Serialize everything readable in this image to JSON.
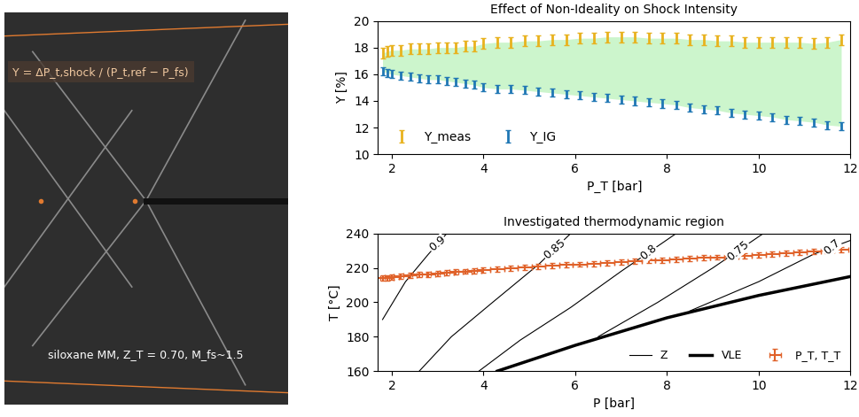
{
  "chart_data": [
    {
      "type": "image",
      "annotations": [
        "Y = ΔP_t,shock / (P_t,ref − P_fs)",
        "siloxane MM, Z_T = 0.70, M_fs~1.5"
      ]
    },
    {
      "type": "errorbar",
      "title": "Effect of Non-Ideality on Shock Intensity",
      "x_label": "P_T [bar]",
      "y_label": "Y [%]",
      "xlim": [
        1.7,
        12
      ],
      "xticks": [
        2,
        4,
        6,
        8,
        10,
        12
      ],
      "ylim": [
        10,
        20
      ],
      "yticks": [
        10,
        12,
        14,
        16,
        18,
        20
      ],
      "legend": "lower left",
      "x": [
        1.8,
        1.9,
        2.0,
        2.2,
        2.4,
        2.6,
        2.8,
        3.0,
        3.2,
        3.4,
        3.6,
        3.8,
        4.0,
        4.3,
        4.6,
        4.9,
        5.2,
        5.5,
        5.8,
        6.1,
        6.4,
        6.7,
        7.0,
        7.3,
        7.6,
        7.9,
        8.2,
        8.5,
        8.8,
        9.1,
        9.4,
        9.7,
        10.0,
        10.3,
        10.6,
        10.9,
        11.2,
        11.5,
        11.8
      ],
      "series": [
        {
          "name": "Y_meas",
          "color": "#e8b21e",
          "error": 0.4,
          "values": [
            17.6,
            17.7,
            17.8,
            17.8,
            17.9,
            17.9,
            17.9,
            18.0,
            18.0,
            18.0,
            18.1,
            18.1,
            18.3,
            18.4,
            18.4,
            18.5,
            18.5,
            18.6,
            18.6,
            18.7,
            18.7,
            18.8,
            18.8,
            18.8,
            18.7,
            18.7,
            18.7,
            18.6,
            18.6,
            18.5,
            18.5,
            18.4,
            18.4,
            18.4,
            18.4,
            18.4,
            18.3,
            18.4,
            18.6
          ]
        },
        {
          "name": "Y_IG",
          "color": "#1f77b4",
          "error": 0.3,
          "values": [
            16.2,
            16.1,
            16.0,
            15.9,
            15.8,
            15.7,
            15.6,
            15.6,
            15.5,
            15.4,
            15.3,
            15.2,
            15.0,
            14.9,
            14.9,
            14.8,
            14.7,
            14.6,
            14.5,
            14.4,
            14.3,
            14.2,
            14.1,
            14.0,
            13.9,
            13.8,
            13.7,
            13.5,
            13.4,
            13.3,
            13.1,
            13.0,
            12.9,
            12.8,
            12.6,
            12.5,
            12.4,
            12.2,
            12.1
          ]
        }
      ]
    },
    {
      "type": "line",
      "title": "Investigated thermodynamic region",
      "x_label": "P [bar]",
      "y_label": "T [°C]",
      "xlim": [
        1.7,
        12
      ],
      "xticks": [
        2,
        4,
        6,
        8,
        10,
        12
      ],
      "ylim": [
        160,
        240
      ],
      "yticks": [
        160,
        180,
        200,
        220,
        240
      ],
      "legend": "lower right",
      "series": [
        {
          "name": "Z",
          "type": "contour",
          "color": "#000000",
          "lines": [
            {
              "label": "0.9",
              "x": [
                1.8,
                2.3,
                2.8,
                3.2
              ],
              "y": [
                190,
                212,
                228,
                240
              ]
            },
            {
              "label": "0.85",
              "x": [
                2.6,
                3.3,
                4.2,
                5.2,
                5.9
              ],
              "y": [
                160,
                180,
                200,
                222,
                240
              ]
            },
            {
              "label": "0.8",
              "x": [
                3.9,
                4.8,
                5.9,
                7.0,
                8.2
              ],
              "y": [
                160,
                178,
                197,
                218,
                240
              ]
            },
            {
              "label": "0.75",
              "x": [
                6.5,
                7.8,
                9.0,
                10.1
              ],
              "y": [
                180,
                200,
                220,
                240
              ]
            },
            {
              "label": "0.7",
              "x": [
                8.5,
                10.0,
                11.2,
                12.0
              ],
              "y": [
                195,
                212,
                228,
                236
              ]
            }
          ]
        },
        {
          "name": "VLE",
          "type": "line",
          "color": "#000000",
          "x": [
            4.3,
            6.0,
            8.0,
            10.0,
            12.0
          ],
          "values": [
            160,
            175,
            191,
            204,
            215
          ]
        },
        {
          "name": "P_T, T_T",
          "type": "errorbar",
          "color": "#e0622a",
          "xerr": 0.15,
          "yerr": 1.5,
          "x": [
            1.8,
            1.9,
            2.0,
            2.2,
            2.4,
            2.6,
            2.8,
            3.0,
            3.2,
            3.4,
            3.6,
            3.8,
            4.0,
            4.3,
            4.6,
            4.9,
            5.2,
            5.5,
            5.8,
            6.1,
            6.4,
            6.7,
            7.0,
            7.3,
            7.6,
            7.9,
            8.2,
            8.5,
            8.8,
            9.1,
            9.4,
            9.7,
            10.0,
            10.3,
            10.6,
            10.9,
            11.2,
            11.5,
            11.8
          ],
          "values": [
            214.0,
            214.3,
            214.6,
            215.0,
            215.5,
            216.0,
            216.4,
            216.8,
            217.2,
            217.6,
            218.0,
            218.3,
            218.6,
            219.2,
            219.8,
            220.3,
            220.8,
            221.3,
            221.7,
            222.1,
            222.5,
            223.0,
            223.4,
            223.8,
            224.2,
            224.6,
            225.0,
            225.4,
            225.8,
            226.2,
            226.6,
            227.0,
            227.4,
            227.9,
            228.4,
            228.9,
            229.4,
            229.9,
            230.5
          ]
        }
      ]
    }
  ]
}
